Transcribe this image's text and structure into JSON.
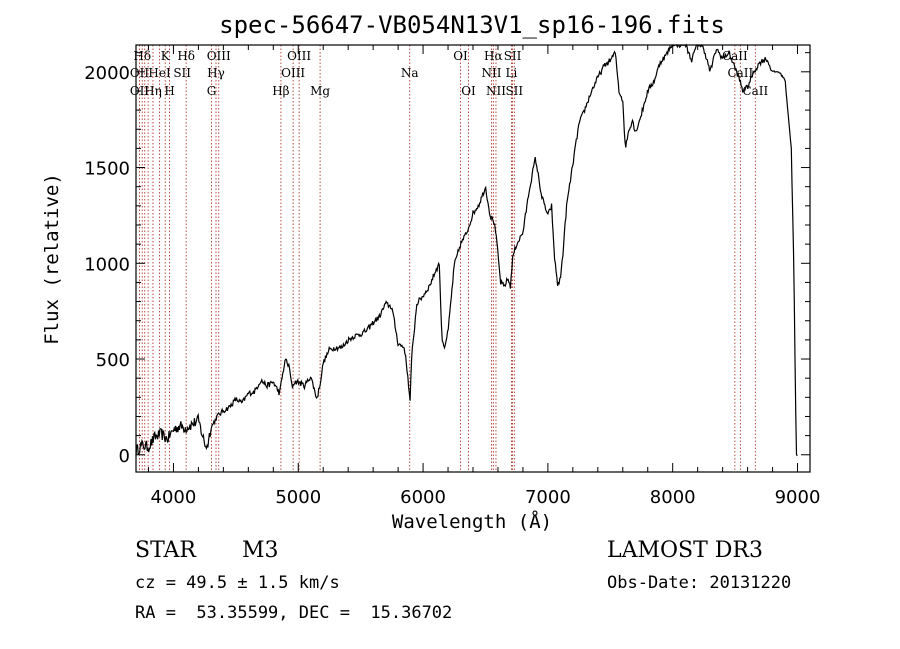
{
  "chart_data": {
    "type": "line",
    "title": "spec-56647-VB054N13V1_sp16-196.fits",
    "xlabel": "Wavelength (Å)",
    "ylabel": "Flux (relative)",
    "xlim": [
      3700,
      9100
    ],
    "ylim": [
      -90,
      2140
    ],
    "x_ticks": [
      4000,
      5000,
      6000,
      7000,
      8000,
      9000
    ],
    "y_ticks": [
      0,
      500,
      1000,
      1500,
      2000
    ],
    "grid": false,
    "series": [
      {
        "name": "flux",
        "x": [
          3700,
          3750,
          3800,
          3850,
          3900,
          3950,
          4000,
          4050,
          4100,
          4150,
          4200,
          4250,
          4270,
          4300,
          4350,
          4400,
          4450,
          4500,
          4550,
          4600,
          4650,
          4700,
          4750,
          4800,
          4850,
          4880,
          4900,
          4930,
          4950,
          4970,
          5000,
          5050,
          5100,
          5150,
          5180,
          5200,
          5250,
          5300,
          5350,
          5400,
          5450,
          5500,
          5550,
          5600,
          5650,
          5700,
          5750,
          5800,
          5850,
          5880,
          5895,
          5910,
          5950,
          6000,
          6050,
          6100,
          6130,
          6150,
          6170,
          6200,
          6250,
          6300,
          6350,
          6400,
          6450,
          6500,
          6540,
          6563,
          6580,
          6600,
          6620,
          6650,
          6680,
          6700,
          6720,
          6750,
          6800,
          6850,
          6900,
          6950,
          7000,
          7030,
          7050,
          7080,
          7100,
          7120,
          7150,
          7200,
          7250,
          7300,
          7350,
          7400,
          7450,
          7500,
          7540,
          7570,
          7600,
          7620,
          7650,
          7680,
          7700,
          7750,
          7800,
          7850,
          7900,
          7950,
          8000,
          8050,
          8100,
          8150,
          8200,
          8250,
          8300,
          8350,
          8400,
          8450,
          8500,
          8540,
          8560,
          8600,
          8650,
          8700,
          8750,
          8800,
          8850,
          8900,
          8950,
          8970,
          8990,
          9000
        ],
        "y": [
          20,
          50,
          40,
          90,
          110,
          80,
          130,
          150,
          140,
          160,
          180,
          60,
          40,
          140,
          200,
          230,
          250,
          290,
          270,
          320,
          330,
          390,
          360,
          380,
          320,
          440,
          500,
          450,
          350,
          380,
          380,
          360,
          410,
          290,
          390,
          480,
          550,
          560,
          560,
          600,
          620,
          630,
          650,
          690,
          720,
          790,
          770,
          580,
          560,
          400,
          270,
          520,
          790,
          830,
          880,
          960,
          1000,
          620,
          560,
          640,
          990,
          1100,
          1160,
          1260,
          1310,
          1400,
          1240,
          1230,
          1170,
          1050,
          900,
          880,
          920,
          880,
          1040,
          1100,
          1160,
          1380,
          1550,
          1350,
          1250,
          1300,
          1050,
          880,
          920,
          1050,
          1300,
          1520,
          1730,
          1810,
          1900,
          1970,
          2030,
          2060,
          2100,
          1900,
          1850,
          1600,
          1700,
          1750,
          1680,
          1780,
          1900,
          1950,
          2050,
          2090,
          2150,
          2140,
          2150,
          2060,
          2150,
          2120,
          2000,
          2120,
          2070,
          2100,
          2020,
          1950,
          1900,
          1920,
          2000,
          2050,
          2070,
          2000,
          2000,
          1960,
          1600,
          1000,
          0,
          -10
        ]
      }
    ],
    "spectral_lines": [
      {
        "label": "Hδ",
        "x": 3750,
        "row": 0
      },
      {
        "label": "OII",
        "x": 3728,
        "row": 1
      },
      {
        "label": "OII",
        "x": 3728,
        "row": 2
      },
      {
        "label": "Hη",
        "x": 3836,
        "row": 2
      },
      {
        "label": "HeI",
        "x": 3889,
        "row": 1
      },
      {
        "label": "K",
        "x": 3934,
        "row": 0
      },
      {
        "label": "H",
        "x": 3969,
        "row": 2
      },
      {
        "label": "SII",
        "x": 4070,
        "row": 1
      },
      {
        "label": "Hδ",
        "x": 4102,
        "row": 0
      },
      {
        "label": "OIII",
        "x": 4363,
        "row": 0
      },
      {
        "label": "Hγ",
        "x": 4341,
        "row": 1
      },
      {
        "label": "G",
        "x": 4305,
        "row": 2
      },
      {
        "label": "Hβ",
        "x": 4861,
        "row": 2
      },
      {
        "label": "OIII",
        "x": 5007,
        "row": 0
      },
      {
        "label": "OIII",
        "x": 4959,
        "row": 1
      },
      {
        "label": "Mg",
        "x": 5175,
        "row": 2
      },
      {
        "label": "Na",
        "x": 5893,
        "row": 1
      },
      {
        "label": "OI",
        "x": 6300,
        "row": 0
      },
      {
        "label": "OI",
        "x": 6364,
        "row": 2
      },
      {
        "label": "Hα",
        "x": 6563,
        "row": 0
      },
      {
        "label": "NII",
        "x": 6548,
        "row": 1
      },
      {
        "label": "NII",
        "x": 6584,
        "row": 2
      },
      {
        "label": "SII",
        "x": 6717,
        "row": 0
      },
      {
        "label": "Li",
        "x": 6708,
        "row": 1
      },
      {
        "label": "SII",
        "x": 6731,
        "row": 2
      },
      {
        "label": "CaII",
        "x": 8498,
        "row": 0
      },
      {
        "label": "CaII",
        "x": 8542,
        "row": 1
      },
      {
        "label": "CaII",
        "x": 8662,
        "row": 2
      }
    ],
    "marker_lines_x": [
      3728,
      3750,
      3770,
      3797,
      3836,
      3889,
      3934,
      3969,
      4102,
      4305,
      4341,
      4363,
      4861,
      4959,
      5007,
      5175,
      5893,
      6300,
      6364,
      6548,
      6563,
      6584,
      6708,
      6717,
      6731,
      8498,
      8542,
      8662
    ]
  },
  "info": {
    "object_class": "STAR",
    "subclass": "M3",
    "survey": "LAMOST DR3",
    "cz": "cz = 49.5 ± 1.5 km/s",
    "obs_date": "Obs-Date: 20131220",
    "coords": "RA =  53.35599, DEC =  15.36702"
  },
  "colors": {
    "axis": "#000000",
    "spectrum": "#000000",
    "marker_lines": "#b03a2e"
  }
}
